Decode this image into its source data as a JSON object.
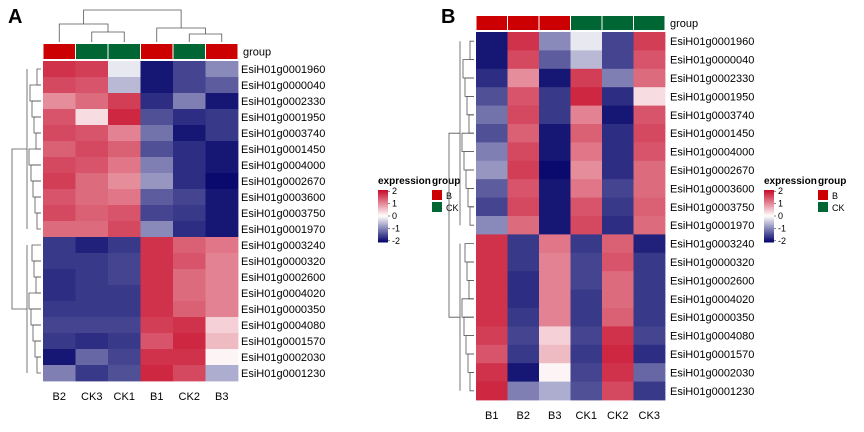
{
  "panels": {
    "A": {
      "letter": "A",
      "group_title": "group",
      "legend_expression_title": "expression",
      "legend_group_title": "group"
    },
    "B": {
      "letter": "B",
      "group_title": "group",
      "legend_expression_title": "expression",
      "legend_group_title": "group"
    }
  },
  "colors": {
    "high": "#C8102E",
    "mid": "#FFFFFF",
    "low": "#0A0A6E",
    "group_B": "#CC0000",
    "group_CK": "#006633"
  },
  "chart_data": [
    {
      "type": "heatmap",
      "panel": "A",
      "clustered_columns": true,
      "clustered_rows": true,
      "columns": [
        "B2",
        "CK3",
        "CK1",
        "B1",
        "CK2",
        "B3"
      ],
      "column_groups": [
        "B",
        "CK",
        "CK",
        "B",
        "CK",
        "B"
      ],
      "rows": [
        "EsiH01g0001960",
        "EsiH01g0000040",
        "EsiH01g0002330",
        "EsiH01g0001950",
        "EsiH01g0003740",
        "EsiH01g0001450",
        "EsiH01g0004000",
        "EsiH01g0002670",
        "EsiH01g0003600",
        "EsiH01g0003750",
        "EsiH01g0001970",
        "EsiH01g0003240",
        "EsiH01g0000320",
        "EsiH01g0002600",
        "EsiH01g0004020",
        "EsiH01g0000350",
        "EsiH01g0004080",
        "EsiH01g0001570",
        "EsiH01g0002030",
        "EsiH01g0001230"
      ],
      "values": [
        [
          1.8,
          1.7,
          -0.2,
          -2.0,
          -1.6,
          -1.0
        ],
        [
          1.6,
          1.5,
          -0.6,
          -2.0,
          -1.6,
          -1.4
        ],
        [
          1.0,
          1.3,
          1.7,
          -1.8,
          -1.1,
          -2.0
        ],
        [
          1.5,
          0.3,
          1.9,
          -1.5,
          -1.8,
          -1.7
        ],
        [
          1.6,
          1.5,
          1.1,
          -1.2,
          -2.0,
          -1.7
        ],
        [
          1.4,
          1.6,
          1.4,
          -1.5,
          -1.8,
          -2.0
        ],
        [
          1.6,
          1.5,
          1.2,
          -1.1,
          -1.8,
          -2.0
        ],
        [
          1.7,
          1.3,
          1.0,
          -0.9,
          -1.8,
          -2.1
        ],
        [
          1.5,
          1.3,
          1.2,
          -1.4,
          -1.6,
          -2.0
        ],
        [
          1.6,
          1.4,
          1.5,
          -1.6,
          -1.7,
          -2.0
        ],
        [
          1.3,
          1.3,
          1.6,
          -1.0,
          -1.8,
          -2.0
        ],
        [
          -1.7,
          -1.9,
          -1.7,
          1.8,
          1.4,
          1.2
        ],
        [
          -1.7,
          -1.7,
          -1.6,
          1.8,
          1.5,
          1.1
        ],
        [
          -1.8,
          -1.7,
          -1.6,
          1.8,
          1.3,
          1.1
        ],
        [
          -1.8,
          -1.7,
          -1.7,
          1.8,
          1.3,
          1.1
        ],
        [
          -1.7,
          -1.7,
          -1.7,
          1.8,
          1.4,
          1.1
        ],
        [
          -1.6,
          -1.6,
          -1.6,
          1.7,
          1.8,
          0.4
        ],
        [
          -1.7,
          -1.8,
          -1.7,
          1.5,
          1.9,
          0.6
        ],
        [
          -2.0,
          -1.3,
          -1.6,
          1.8,
          1.8,
          0.1
        ],
        [
          -1.1,
          -1.7,
          -1.5,
          1.9,
          1.6,
          -0.7
        ]
      ],
      "legend_scale": {
        "ticks": [
          "2",
          "1",
          "0",
          "-1",
          "-2"
        ],
        "min": -2.1,
        "max": 2.1
      },
      "legend_groups": [
        "B",
        "CK"
      ]
    },
    {
      "type": "heatmap",
      "panel": "B",
      "clustered_columns": false,
      "clustered_rows": true,
      "columns": [
        "B1",
        "B2",
        "B3",
        "CK1",
        "CK2",
        "CK3"
      ],
      "column_groups": [
        "B",
        "B",
        "B",
        "CK",
        "CK",
        "CK"
      ],
      "rows": [
        "EsiH01g0001960",
        "EsiH01g0000040",
        "EsiH01g0002330",
        "EsiH01g0001950",
        "EsiH01g0003740",
        "EsiH01g0001450",
        "EsiH01g0004000",
        "EsiH01g0002670",
        "EsiH01g0003600",
        "EsiH01g0003750",
        "EsiH01g0001970",
        "EsiH01g0003240",
        "EsiH01g0000320",
        "EsiH01g0002600",
        "EsiH01g0004020",
        "EsiH01g0000350",
        "EsiH01g0004080",
        "EsiH01g0001570",
        "EsiH01g0002030",
        "EsiH01g0001230"
      ],
      "values": [
        [
          -2.0,
          1.8,
          -1.0,
          -0.2,
          -1.6,
          1.7
        ],
        [
          -2.0,
          1.6,
          -1.4,
          -0.6,
          -1.6,
          1.5
        ],
        [
          -1.8,
          1.0,
          -2.0,
          1.7,
          -1.1,
          1.3
        ],
        [
          -1.5,
          1.5,
          -1.7,
          1.9,
          -1.8,
          0.3
        ],
        [
          -1.2,
          1.6,
          -1.7,
          1.1,
          -2.0,
          1.5
        ],
        [
          -1.5,
          1.4,
          -2.0,
          1.4,
          -1.8,
          1.6
        ],
        [
          -1.1,
          1.6,
          -2.0,
          1.2,
          -1.8,
          1.5
        ],
        [
          -0.9,
          1.7,
          -2.1,
          1.0,
          -1.8,
          1.3
        ],
        [
          -1.4,
          1.5,
          -2.0,
          1.2,
          -1.6,
          1.3
        ],
        [
          -1.6,
          1.6,
          -2.0,
          1.5,
          -1.7,
          1.4
        ],
        [
          -1.0,
          1.3,
          -2.0,
          1.6,
          -1.8,
          1.3
        ],
        [
          1.8,
          -1.7,
          1.2,
          -1.7,
          1.4,
          -1.9
        ],
        [
          1.8,
          -1.7,
          1.1,
          -1.6,
          1.5,
          -1.7
        ],
        [
          1.8,
          -1.8,
          1.1,
          -1.6,
          1.3,
          -1.7
        ],
        [
          1.8,
          -1.8,
          1.1,
          -1.7,
          1.3,
          -1.7
        ],
        [
          1.8,
          -1.7,
          1.1,
          -1.7,
          1.4,
          -1.7
        ],
        [
          1.7,
          -1.6,
          0.4,
          -1.6,
          1.8,
          -1.6
        ],
        [
          1.5,
          -1.7,
          0.6,
          -1.7,
          1.9,
          -1.8
        ],
        [
          1.8,
          -2.0,
          0.1,
          -1.6,
          1.8,
          -1.3
        ],
        [
          1.9,
          -1.1,
          -0.7,
          -1.5,
          1.6,
          -1.7
        ]
      ],
      "legend_scale": {
        "ticks": [
          "2",
          "1",
          "0",
          "-1",
          "-2"
        ],
        "min": -2.1,
        "max": 2.1
      },
      "legend_groups": [
        "B",
        "CK"
      ]
    }
  ]
}
